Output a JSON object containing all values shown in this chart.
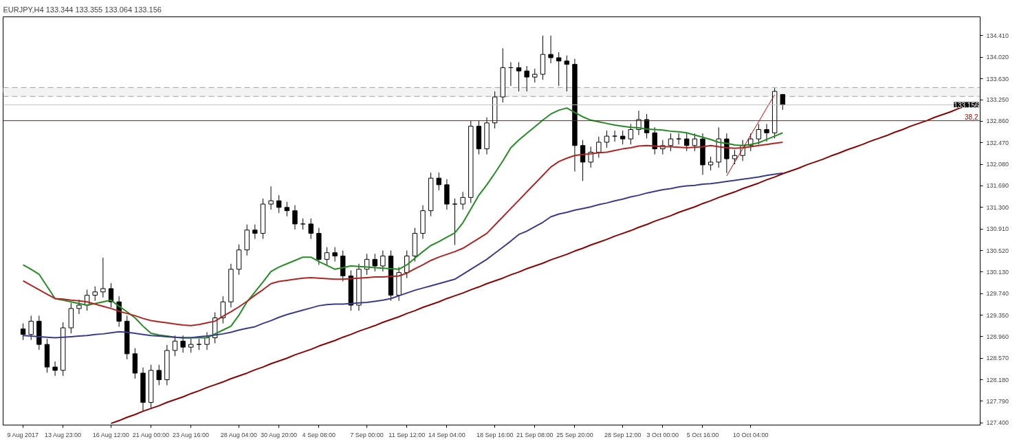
{
  "chart_data": {
    "type": "candlestick",
    "title": "EURJPY,H4  133.344 133.355 133.064 133.156",
    "categories": [
      "9 Aug 2017",
      null,
      null,
      null,
      null,
      "13 Aug 23:00",
      null,
      null,
      null,
      null,
      null,
      "16 Aug 12:00",
      null,
      null,
      null,
      null,
      "21 Aug 00:00",
      null,
      null,
      null,
      null,
      "23 Aug 16:00",
      null,
      null,
      null,
      null,
      null,
      "28 Aug 04:00",
      null,
      null,
      null,
      null,
      "30 Aug 20:00",
      null,
      null,
      null,
      null,
      "4 Sep 08:00",
      null,
      null,
      null,
      null,
      null,
      "7 Sep 00:00",
      null,
      null,
      null,
      null,
      "11 Sep 12:00",
      null,
      null,
      null,
      null,
      "14 Sep 04:00",
      null,
      null,
      null,
      null,
      null,
      "18 Sep 16:00",
      null,
      null,
      null,
      null,
      "21 Sep 08:00",
      null,
      null,
      null,
      null,
      "25 Sep 20:00",
      null,
      null,
      null,
      null,
      null,
      "28 Sep 12:00",
      null,
      null,
      null,
      null,
      "3 Oct 00:00",
      null,
      null,
      null,
      null,
      "5 Oct 16:00",
      null,
      null,
      null,
      null,
      null,
      "10 Oct 04:00",
      null,
      null,
      null,
      null,
      null,
      null,
      null,
      null,
      null,
      null,
      null,
      null,
      null,
      null,
      null,
      null,
      null,
      null,
      null,
      null,
      null,
      null,
      null,
      null,
      null,
      null,
      null,
      null
    ],
    "ohlc": [
      [
        129.1,
        129.2,
        128.9,
        129.0
      ],
      [
        129.0,
        129.34,
        128.9,
        129.24
      ],
      [
        129.24,
        129.34,
        128.72,
        128.82
      ],
      [
        128.82,
        128.92,
        128.31,
        128.41
      ],
      [
        128.41,
        128.51,
        128.25,
        128.35
      ],
      [
        128.35,
        129.22,
        128.25,
        129.12
      ],
      [
        129.12,
        129.57,
        129.02,
        129.47
      ],
      [
        129.47,
        129.63,
        129.37,
        129.53
      ],
      [
        129.53,
        129.81,
        129.43,
        129.71
      ],
      [
        129.71,
        129.87,
        129.61,
        129.77
      ],
      [
        129.77,
        130.39,
        129.67,
        129.83
      ],
      [
        129.83,
        129.93,
        129.49,
        129.59
      ],
      [
        129.59,
        129.69,
        129.14,
        129.24
      ],
      [
        129.24,
        129.34,
        128.55,
        128.65
      ],
      [
        128.65,
        128.75,
        128.2,
        128.3
      ],
      [
        128.3,
        128.4,
        127.62,
        127.77
      ],
      [
        127.77,
        128.45,
        127.67,
        128.35
      ],
      [
        128.35,
        128.45,
        128.08,
        128.18
      ],
      [
        128.18,
        128.81,
        128.08,
        128.71
      ],
      [
        128.71,
        128.98,
        128.61,
        128.88
      ],
      [
        128.88,
        128.98,
        128.67,
        128.77
      ],
      [
        128.77,
        128.92,
        128.67,
        128.82
      ],
      [
        128.82,
        128.92,
        128.72,
        128.82
      ],
      [
        128.82,
        129.04,
        128.72,
        128.94
      ],
      [
        128.94,
        129.4,
        128.84,
        129.3
      ],
      [
        129.3,
        129.69,
        129.2,
        129.59
      ],
      [
        129.59,
        130.28,
        129.49,
        130.18
      ],
      [
        130.18,
        130.63,
        130.08,
        130.53
      ],
      [
        130.53,
        130.99,
        130.43,
        130.89
      ],
      [
        130.89,
        130.99,
        130.73,
        130.83
      ],
      [
        130.83,
        131.46,
        130.73,
        131.36
      ],
      [
        131.36,
        131.68,
        131.26,
        131.42
      ],
      [
        131.42,
        131.52,
        131.2,
        131.3
      ],
      [
        131.3,
        131.4,
        131.14,
        131.24
      ],
      [
        131.24,
        131.34,
        130.9,
        131.0
      ],
      [
        131.0,
        131.1,
        130.9,
        131.0
      ],
      [
        131.0,
        131.1,
        130.73,
        130.83
      ],
      [
        130.83,
        130.93,
        130.26,
        130.36
      ],
      [
        130.36,
        130.58,
        130.26,
        130.48
      ],
      [
        130.48,
        130.58,
        130.32,
        130.42
      ],
      [
        130.42,
        130.52,
        129.96,
        130.06
      ],
      [
        130.06,
        130.16,
        129.43,
        129.53
      ],
      [
        129.53,
        130.28,
        129.43,
        130.18
      ],
      [
        130.18,
        130.46,
        130.08,
        130.36
      ],
      [
        130.36,
        130.46,
        130.14,
        130.24
      ],
      [
        130.24,
        130.52,
        130.14,
        130.42
      ],
      [
        130.42,
        130.52,
        129.61,
        129.71
      ],
      [
        129.71,
        130.22,
        129.61,
        130.12
      ],
      [
        130.12,
        130.52,
        130.02,
        130.42
      ],
      [
        130.42,
        130.93,
        130.32,
        130.83
      ],
      [
        130.83,
        131.34,
        130.73,
        131.24
      ],
      [
        131.24,
        131.93,
        131.14,
        131.83
      ],
      [
        131.83,
        131.93,
        131.61,
        131.71
      ],
      [
        131.71,
        131.81,
        131.26,
        131.36
      ],
      [
        131.36,
        131.46,
        130.62,
        131.36
      ],
      [
        131.36,
        131.58,
        131.26,
        131.48
      ],
      [
        131.48,
        132.87,
        131.38,
        132.77
      ],
      [
        132.77,
        132.87,
        132.26,
        132.36
      ],
      [
        132.36,
        132.93,
        132.26,
        132.83
      ],
      [
        132.83,
        133.4,
        132.73,
        133.3
      ],
      [
        133.3,
        134.18,
        133.2,
        133.83
      ],
      [
        133.83,
        133.93,
        133.5,
        133.83
      ],
      [
        133.83,
        133.93,
        133.4,
        133.77
      ],
      [
        133.77,
        133.86,
        133.4,
        133.66
      ],
      [
        133.66,
        133.81,
        133.56,
        133.71
      ],
      [
        133.71,
        134.41,
        133.61,
        134.07
      ],
      [
        134.07,
        134.41,
        133.91,
        134.01
      ],
      [
        134.01,
        134.11,
        133.5,
        133.95
      ],
      [
        133.95,
        134.05,
        133.4,
        133.89
      ],
      [
        133.89,
        133.99,
        131.95,
        132.42
      ],
      [
        132.42,
        132.52,
        131.78,
        132.12
      ],
      [
        132.12,
        132.4,
        132.02,
        132.3
      ],
      [
        132.3,
        132.58,
        132.2,
        132.48
      ],
      [
        132.48,
        132.69,
        132.38,
        132.59
      ],
      [
        132.59,
        132.69,
        132.49,
        132.59
      ],
      [
        132.59,
        132.69,
        132.44,
        132.54
      ],
      [
        132.54,
        132.81,
        132.44,
        132.71
      ],
      [
        132.71,
        133.05,
        132.61,
        132.89
      ],
      [
        132.89,
        132.99,
        132.55,
        132.65
      ],
      [
        132.65,
        132.75,
        132.26,
        132.36
      ],
      [
        132.36,
        132.52,
        132.26,
        132.42
      ],
      [
        132.42,
        132.64,
        132.32,
        132.54
      ],
      [
        132.54,
        132.64,
        132.44,
        132.54
      ],
      [
        132.54,
        132.64,
        132.32,
        132.42
      ],
      [
        132.42,
        132.64,
        132.32,
        132.54
      ],
      [
        132.54,
        132.64,
        131.89,
        132.07
      ],
      [
        132.07,
        132.22,
        131.97,
        132.12
      ],
      [
        132.12,
        132.75,
        132.02,
        132.54
      ],
      [
        132.54,
        132.64,
        131.92,
        132.18
      ],
      [
        132.18,
        132.34,
        132.08,
        132.24
      ],
      [
        132.24,
        132.52,
        132.14,
        132.42
      ],
      [
        132.42,
        132.64,
        132.32,
        132.54
      ],
      [
        132.54,
        132.81,
        132.44,
        132.71
      ],
      [
        132.71,
        132.81,
        132.49,
        132.65
      ],
      [
        132.65,
        133.46,
        132.55,
        133.4
      ],
      [
        133.344,
        133.355,
        133.064,
        133.156
      ],
      null,
      null,
      null,
      null,
      null,
      null,
      null,
      null,
      null,
      null,
      null,
      null,
      null,
      null,
      null,
      null,
      null,
      null,
      null,
      null,
      null,
      null,
      null,
      null
    ],
    "series": [
      {
        "type": "line",
        "color": "#228b22",
        "values": [
          130.26,
          130.18,
          130.09,
          129.87,
          129.65,
          129.62,
          129.59,
          129.56,
          129.53,
          129.56,
          129.59,
          129.62,
          129.51,
          129.41,
          129.3,
          129.15,
          129.02,
          128.99,
          128.97,
          128.95,
          128.94,
          128.94,
          128.94,
          128.94,
          129.01,
          129.08,
          129.15,
          129.35,
          129.59,
          129.77,
          129.95,
          130.14,
          130.22,
          130.28,
          130.34,
          130.4,
          130.4,
          130.32,
          130.25,
          130.18,
          130.21,
          130.24,
          130.23,
          130.22,
          130.21,
          130.2,
          130.19,
          130.18,
          130.26,
          130.38,
          130.5,
          130.61,
          130.68,
          130.76,
          130.84,
          131.02,
          131.27,
          131.52,
          131.71,
          131.92,
          132.14,
          132.38,
          132.52,
          132.64,
          132.76,
          132.88,
          132.99,
          133.06,
          133.1,
          133.02,
          132.94,
          132.88,
          132.85,
          132.82,
          132.79,
          132.77,
          132.75,
          132.74,
          132.72,
          132.71,
          132.7,
          132.68,
          132.67,
          132.65,
          132.61,
          132.57,
          132.53,
          132.48,
          132.46,
          132.43,
          132.42,
          132.44,
          132.47,
          132.53,
          132.59,
          132.65,
          null,
          null,
          null,
          null,
          null,
          null,
          null,
          null,
          null,
          null,
          null,
          null,
          null,
          null,
          null,
          null,
          null,
          null,
          null,
          null,
          null,
          null,
          null,
          null
        ]
      },
      {
        "type": "line",
        "color": "#b22222",
        "values": [
          129.97,
          129.89,
          129.81,
          129.73,
          129.65,
          129.64,
          129.62,
          129.61,
          129.59,
          129.55,
          129.51,
          129.47,
          129.42,
          129.38,
          129.34,
          129.29,
          129.25,
          129.23,
          129.21,
          129.19,
          129.17,
          129.16,
          129.18,
          129.21,
          129.24,
          129.33,
          129.41,
          129.5,
          129.6,
          129.71,
          129.81,
          129.92,
          129.96,
          129.98,
          130.0,
          130.02,
          130.03,
          130.02,
          130.01,
          130.0,
          130.0,
          130.01,
          130.02,
          130.03,
          130.04,
          130.04,
          130.05,
          130.06,
          130.11,
          130.19,
          130.26,
          130.34,
          130.4,
          130.45,
          130.5,
          130.56,
          130.65,
          130.74,
          130.83,
          130.98,
          131.13,
          131.28,
          131.43,
          131.58,
          131.73,
          131.88,
          132.03,
          132.13,
          132.19,
          132.24,
          132.26,
          132.27,
          132.29,
          132.3,
          132.33,
          132.36,
          132.38,
          132.41,
          132.42,
          132.41,
          132.4,
          132.4,
          132.39,
          132.38,
          132.39,
          132.4,
          132.42,
          132.4,
          132.38,
          132.37,
          132.38,
          132.4,
          132.42,
          132.44,
          132.46,
          132.48,
          null,
          null,
          null,
          null,
          null,
          null,
          null,
          null,
          null,
          null,
          null,
          null,
          null,
          null,
          null,
          null,
          null,
          null,
          null,
          null,
          null,
          null,
          null,
          null
        ]
      },
      {
        "type": "line",
        "color": "#3a3a8c",
        "values": [
          128.98,
          128.97,
          128.96,
          128.95,
          128.94,
          128.95,
          128.96,
          128.97,
          128.98,
          129.0,
          129.01,
          129.03,
          129.05,
          129.04,
          129.02,
          129.0,
          128.98,
          128.97,
          128.96,
          128.95,
          128.94,
          128.94,
          128.96,
          128.97,
          128.99,
          129.01,
          129.04,
          129.08,
          129.11,
          129.14,
          129.2,
          129.25,
          129.31,
          129.36,
          129.4,
          129.44,
          129.48,
          129.52,
          129.54,
          129.55,
          129.55,
          129.56,
          129.57,
          129.58,
          129.6,
          129.62,
          129.65,
          129.7,
          129.75,
          129.8,
          129.84,
          129.88,
          129.92,
          129.96,
          130.0,
          130.09,
          130.18,
          130.27,
          130.36,
          130.47,
          130.58,
          130.69,
          130.81,
          130.87,
          130.95,
          131.03,
          131.13,
          131.18,
          131.21,
          131.25,
          131.28,
          131.31,
          131.35,
          131.38,
          131.42,
          131.45,
          131.49,
          131.52,
          131.56,
          131.59,
          131.62,
          131.64,
          131.67,
          131.69,
          131.7,
          131.72,
          131.73,
          131.75,
          131.77,
          131.79,
          131.81,
          131.83,
          131.85,
          131.88,
          131.9,
          131.92,
          null,
          null,
          null,
          null,
          null,
          null,
          null,
          null,
          null,
          null,
          null,
          null,
          null,
          null,
          null,
          null,
          null,
          null,
          null,
          null,
          null,
          null,
          null,
          null
        ]
      },
      {
        "type": "line",
        "color": "#8b0000",
        "values": [
          null,
          null,
          null,
          null,
          null,
          null,
          null,
          null,
          null,
          null,
          null,
          127.39,
          127.44,
          127.5,
          127.55,
          127.61,
          127.66,
          127.71,
          127.77,
          127.82,
          127.87,
          127.93,
          127.98,
          128.04,
          128.09,
          128.14,
          128.2,
          128.25,
          128.3,
          128.36,
          128.41,
          128.47,
          128.52,
          128.57,
          128.63,
          128.68,
          128.73,
          128.79,
          128.84,
          128.89,
          128.95,
          129.0,
          129.06,
          129.11,
          129.16,
          129.22,
          129.27,
          129.32,
          129.38,
          129.43,
          129.49,
          129.54,
          129.59,
          129.65,
          129.7,
          129.75,
          129.81,
          129.86,
          129.92,
          129.97,
          130.02,
          130.08,
          130.13,
          130.19,
          130.24,
          130.29,
          130.35,
          130.4,
          130.45,
          130.51,
          130.56,
          130.62,
          130.67,
          130.72,
          130.78,
          130.83,
          130.88,
          130.94,
          130.99,
          131.05,
          131.1,
          131.15,
          131.21,
          131.26,
          131.31,
          131.37,
          131.42,
          131.48,
          131.53,
          131.58,
          131.64,
          131.69,
          131.74,
          131.8,
          131.85,
          131.91,
          131.96,
          132.01,
          132.07,
          132.12,
          132.17,
          132.23,
          132.28,
          132.34,
          132.39,
          132.44,
          132.5,
          132.55,
          132.6,
          132.66,
          132.71,
          132.77,
          132.82,
          132.87,
          132.93,
          132.98,
          133.03,
          133.09,
          133.14,
          null
        ]
      },
      {
        "type": "line",
        "color": "#c00000",
        "values": [
          null,
          null,
          null,
          null,
          null,
          null,
          null,
          null,
          null,
          null,
          null,
          null,
          null,
          null,
          null,
          null,
          null,
          null,
          null,
          null,
          null,
          null,
          null,
          null,
          null,
          null,
          null,
          null,
          null,
          null,
          null,
          null,
          null,
          null,
          null,
          null,
          null,
          null,
          null,
          null,
          null,
          null,
          null,
          null,
          null,
          null,
          null,
          null,
          null,
          null,
          null,
          null,
          null,
          null,
          null,
          null,
          null,
          null,
          null,
          null,
          null,
          null,
          null,
          null,
          null,
          null,
          null,
          null,
          null,
          null,
          null,
          null,
          null,
          null,
          null,
          null,
          null,
          null,
          null,
          null,
          null,
          null,
          null,
          null,
          null,
          null,
          null,
          null,
          131.87,
          132.12,
          132.36,
          132.61,
          132.85,
          133.1,
          133.34,
          null,
          null,
          null,
          null,
          null,
          null,
          null,
          null,
          null,
          null,
          null,
          null,
          null,
          null,
          null,
          null,
          null,
          null,
          null,
          null,
          null,
          null,
          null,
          null,
          null
        ]
      }
    ],
    "ref_lines": [
      {
        "axis": "y",
        "value": 133.156,
        "label": "133.156",
        "color": "#c0c0c0"
      },
      {
        "axis": "y",
        "value": 132.87,
        "color": "#c00000"
      }
    ],
    "annotations": [
      {
        "text": "38,2",
        "y": 132.87
      }
    ],
    "bands": [
      {
        "axis": "y",
        "from": 133.31,
        "to": 133.47,
        "color": "#a0a0a0"
      }
    ],
    "ylim": [
      127.36,
      134.75
    ],
    "yticks": [
      {
        "value": 127.4,
        "label": "127.400"
      },
      {
        "value": 127.79,
        "label": "127.790"
      },
      {
        "value": 128.18,
        "label": "128.180"
      },
      {
        "value": 128.57,
        "label": "128.570"
      },
      {
        "value": 128.96,
        "label": "128.960"
      },
      {
        "value": 129.35,
        "label": "129.350"
      },
      {
        "value": 129.74,
        "label": "129.740"
      },
      {
        "value": 130.13,
        "label": "130.130"
      },
      {
        "value": 130.52,
        "label": "130.520"
      },
      {
        "value": 130.91,
        "label": "130.910"
      },
      {
        "value": 131.3,
        "label": "131.300"
      },
      {
        "value": 131.69,
        "label": "131.690"
      },
      {
        "value": 132.08,
        "label": "132.080"
      },
      {
        "value": 132.47,
        "label": "132.470"
      },
      {
        "value": 132.86,
        "label": "132.860"
      },
      {
        "value": 133.25,
        "label": "133.250"
      },
      {
        "value": 133.63,
        "label": "133.630"
      },
      {
        "value": 134.02,
        "label": "134.020"
      },
      {
        "value": 134.41,
        "label": "134.410"
      }
    ]
  }
}
